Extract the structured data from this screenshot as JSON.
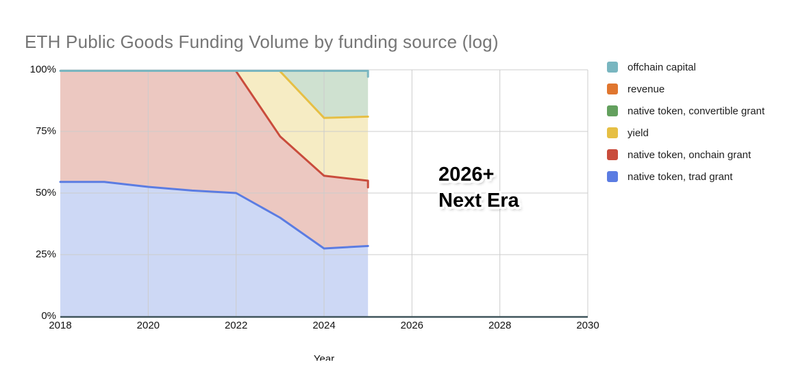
{
  "title": "ETH Public Goods Funding Volume by funding source (log)",
  "axes": {
    "xlabel": "Year",
    "x_ticks": [
      "2018",
      "2020",
      "2022",
      "2024",
      "2026",
      "2028",
      "2030"
    ],
    "y_ticks": [
      {
        "value": 100,
        "label": "100%"
      },
      {
        "value": 75,
        "label": "75%"
      },
      {
        "value": 50,
        "label": "50%"
      },
      {
        "value": 25,
        "label": "25%"
      },
      {
        "value": 0,
        "label": "0%"
      }
    ]
  },
  "legend": {
    "items": [
      {
        "label": "offchain capital",
        "color": "#79b6c0"
      },
      {
        "label": "revenue",
        "color": "#e0762f"
      },
      {
        "label": "native token, convertible grant",
        "color": "#63a05e"
      },
      {
        "label": "yield",
        "color": "#e6bf44"
      },
      {
        "label": "native token, onchain grant",
        "color": "#c94c3c"
      },
      {
        "label": "native token, trad grant",
        "color": "#5b7ce2"
      }
    ]
  },
  "annotation": {
    "line1": "2026+",
    "line2": "Next Era"
  },
  "colors": {
    "axis": "#3f545b",
    "grid": "#cccccc",
    "title": "#757575",
    "background": "#ffffff"
  },
  "chart_data": {
    "type": "area",
    "stacking": "percent",
    "title": "ETH Public Goods Funding Volume by funding source (log)",
    "xlabel": "Year",
    "ylabel": "",
    "x_range": [
      2018,
      2030
    ],
    "y_range": [
      0,
      100
    ],
    "x_gridlines": [
      2020,
      2022,
      2024,
      2026,
      2028,
      2030
    ],
    "y_gridlines": [
      25,
      50,
      75,
      100
    ],
    "grid": true,
    "legend_position": "right",
    "data_years": [
      2018,
      2019,
      2020,
      2021,
      2022,
      2023,
      2024,
      2025
    ],
    "note": "Stacked 100% area; data plotted 2018-2025, empty grid to 2030. 'top'/'base' are cumulative percent boundaries; 'line' is the drawn boundary stroke as [year, percent] points.",
    "series": [
      {
        "id": "trad-grant",
        "name": "native token, trad grant",
        "color": "#5b7ce2",
        "fill": "#cdd8f5",
        "x": [
          2018,
          2019,
          2020,
          2021,
          2022,
          2023,
          2024,
          2025
        ],
        "base": [
          0,
          0,
          0,
          0,
          0,
          0,
          0,
          0
        ],
        "top": [
          54.5,
          54.5,
          52.5,
          51,
          50,
          40,
          27.5,
          28.5
        ],
        "line": [
          [
            2018,
            54.5
          ],
          [
            2019,
            54.5
          ],
          [
            2020,
            52.5
          ],
          [
            2021,
            51
          ],
          [
            2022,
            50
          ],
          [
            2023,
            40
          ],
          [
            2024,
            27.5
          ],
          [
            2025,
            28.5
          ]
        ]
      },
      {
        "id": "onchain-grant",
        "name": "native token, onchain grant",
        "color": "#c94c3c",
        "fill": "#ecc8c1",
        "x": [
          2018,
          2019,
          2020,
          2021,
          2022,
          2023,
          2024,
          2025
        ],
        "base": [
          54.5,
          54.5,
          52.5,
          51,
          50,
          40,
          27.5,
          28.5
        ],
        "top": [
          99.4,
          99.4,
          99.4,
          99.4,
          99.4,
          73,
          57,
          55
        ],
        "line": [
          [
            2022,
            99.4
          ],
          [
            2023,
            73
          ],
          [
            2024,
            57
          ],
          [
            2025,
            55
          ],
          [
            2025,
            52.3
          ]
        ]
      },
      {
        "id": "yield",
        "name": "yield",
        "color": "#e6bf44",
        "fill": "#f6ecc4",
        "x": [
          2022,
          2023,
          2024,
          2025
        ],
        "base": [
          99.4,
          73,
          57,
          55
        ],
        "top": [
          99.4,
          99.4,
          80.5,
          81
        ],
        "line": [
          [
            2023,
            99.4
          ],
          [
            2024,
            80.5
          ],
          [
            2025,
            81
          ]
        ]
      },
      {
        "id": "convertible-grant",
        "name": "native token, convertible grant",
        "color": "#63a05e",
        "fill": "#cfe1d0",
        "x": [
          2023,
          2024,
          2025
        ],
        "base": [
          99.4,
          80.5,
          81
        ],
        "top": [
          99.4,
          99.4,
          99.4
        ],
        "line": null
      },
      {
        "id": "offchain-capital",
        "name": "offchain capital",
        "color": "#79b6c0",
        "fill": "#79b6c0",
        "x": [
          2018,
          2025
        ],
        "base": [
          99.4,
          99.4
        ],
        "top": [
          100,
          100
        ],
        "line": [
          [
            2018,
            99.6
          ],
          [
            2019,
            99.6
          ],
          [
            2020,
            99.6
          ],
          [
            2021,
            99.6
          ],
          [
            2022,
            99.6
          ],
          [
            2023,
            99.6
          ],
          [
            2024,
            99.6
          ],
          [
            2025,
            99.6
          ],
          [
            2025,
            97.2
          ]
        ]
      },
      {
        "id": "revenue",
        "name": "revenue",
        "color": "#e0762f",
        "fill": "#e0762f",
        "x": [],
        "base": [],
        "top": [],
        "line": null
      }
    ]
  }
}
